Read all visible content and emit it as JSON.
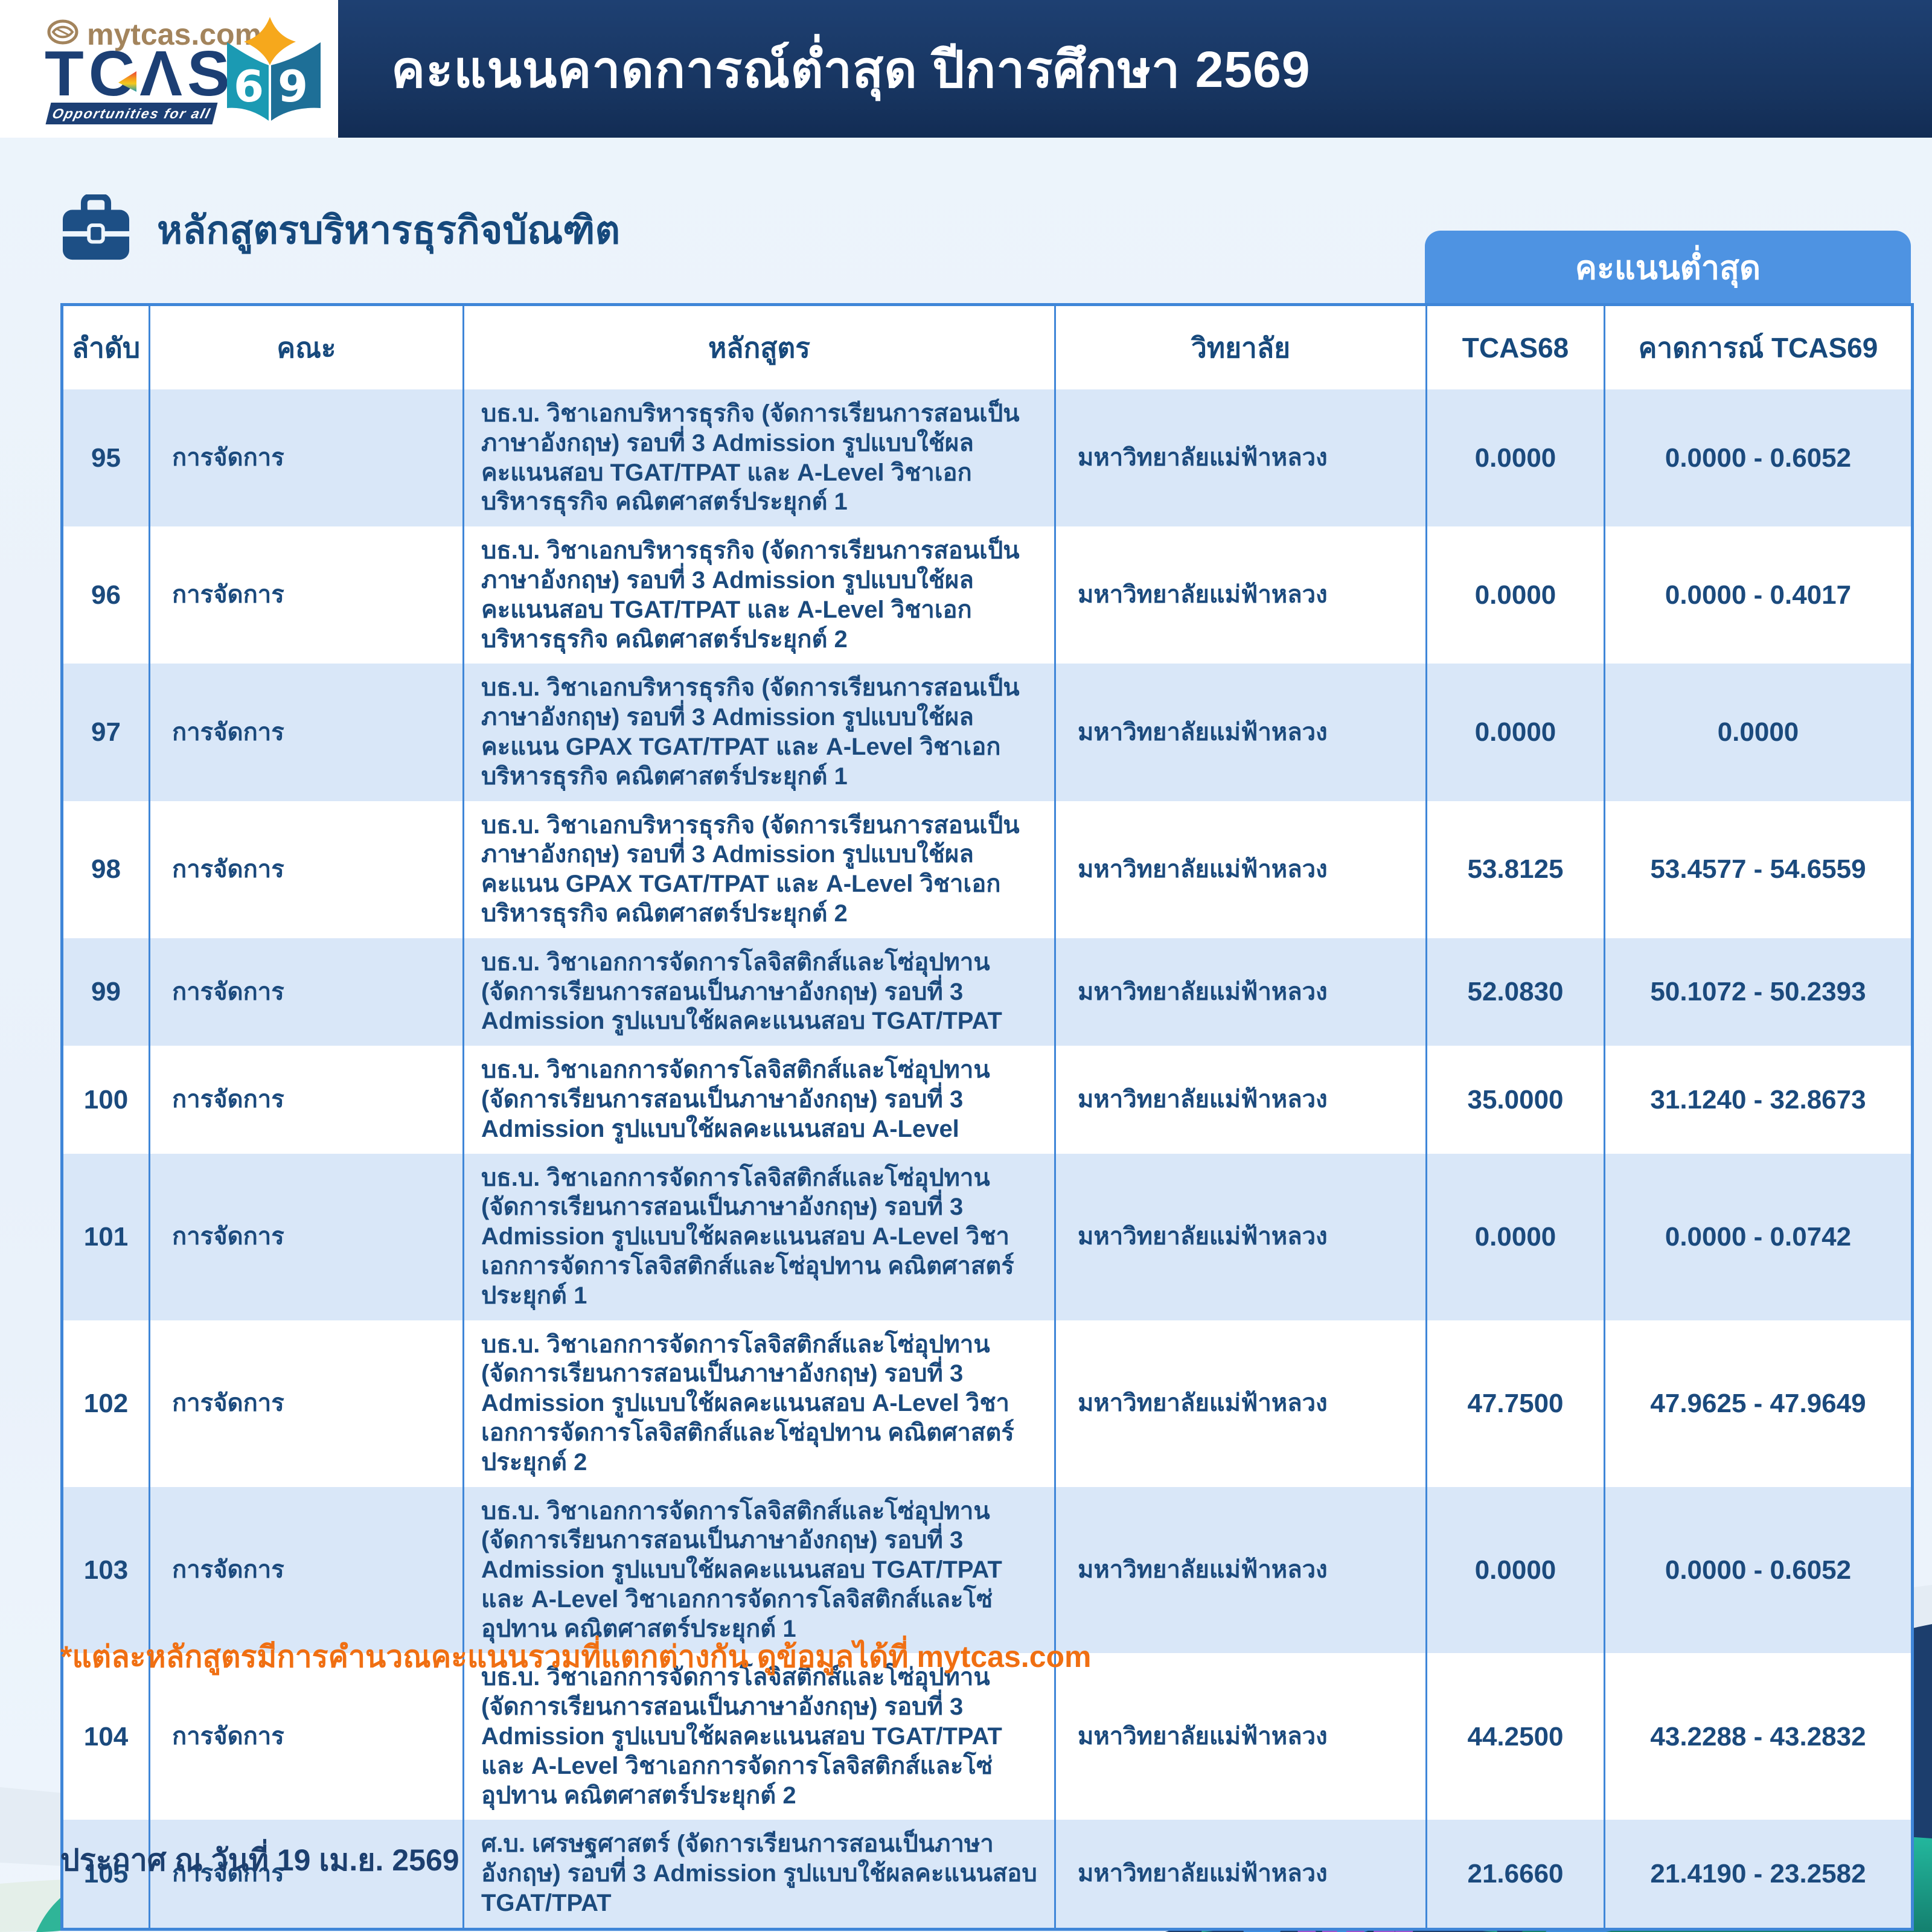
{
  "header": {
    "logo": {
      "site_text": "mytcas.com",
      "brand_text": "TCΛS",
      "tagline": "Opportunities for all",
      "book_left_number": "6",
      "book_right_number": "9"
    },
    "title": "คะแนนคาดการณ์ต่ำสุด ปีการศึกษา 2569"
  },
  "section": {
    "title": "หลักสูตรบริหารธุรกิจบัณฑิต",
    "badge_label": "คะแนนต่ำสุด"
  },
  "table": {
    "headers": [
      "ลำดับ",
      "คณะ",
      "หลักสูตร",
      "วิทยาลัย",
      "TCAS68",
      "คาดการณ์ TCAS69"
    ],
    "rows": [
      {
        "no": "95",
        "faculty": "การจัดการ",
        "program": "บธ.บ. วิชาเอกบริหารธุรกิจ (จัดการเรียนการสอนเป็นภาษาอังกฤษ) รอบที่ 3 Admission รูปแบบใช้ผลคะแนนสอบ TGAT/TPAT และ A-Level วิชาเอกบริหารธุรกิจ คณิตศาสตร์ประยุกต์ 1",
        "college": "มหาวิทยาลัยแม่ฟ้าหลวง",
        "tcas68": "0.0000",
        "tcas69": "0.0000 - 0.6052"
      },
      {
        "no": "96",
        "faculty": "การจัดการ",
        "program": "บธ.บ. วิชาเอกบริหารธุรกิจ (จัดการเรียนการสอนเป็นภาษาอังกฤษ) รอบที่ 3 Admission รูปแบบใช้ผลคะแนนสอบ TGAT/TPAT และ A-Level วิชาเอกบริหารธุรกิจ คณิตศาสตร์ประยุกต์ 2",
        "college": "มหาวิทยาลัยแม่ฟ้าหลวง",
        "tcas68": "0.0000",
        "tcas69": "0.0000 - 0.4017"
      },
      {
        "no": "97",
        "faculty": "การจัดการ",
        "program": "บธ.บ. วิชาเอกบริหารธุรกิจ (จัดการเรียนการสอนเป็นภาษาอังกฤษ) รอบที่ 3 Admission รูปแบบใช้ผลคะแนน GPAX TGAT/TPAT และ A-Level วิชาเอกบริหารธุรกิจ คณิตศาสตร์ประยุกต์ 1",
        "college": "มหาวิทยาลัยแม่ฟ้าหลวง",
        "tcas68": "0.0000",
        "tcas69": "0.0000"
      },
      {
        "no": "98",
        "faculty": "การจัดการ",
        "program": "บธ.บ. วิชาเอกบริหารธุรกิจ (จัดการเรียนการสอนเป็นภาษาอังกฤษ) รอบที่ 3 Admission รูปแบบใช้ผลคะแนน GPAX TGAT/TPAT และ A-Level วิชาเอกบริหารธุรกิจ คณิตศาสตร์ประยุกต์ 2",
        "college": "มหาวิทยาลัยแม่ฟ้าหลวง",
        "tcas68": "53.8125",
        "tcas69": "53.4577 - 54.6559"
      },
      {
        "no": "99",
        "faculty": "การจัดการ",
        "program": "บธ.บ. วิชาเอกการจัดการโลจิสติกส์และโซ่อุปทาน (จัดการเรียนการสอนเป็นภาษาอังกฤษ) รอบที่ 3 Admission รูปแบบใช้ผลคะแนนสอบ TGAT/TPAT",
        "college": "มหาวิทยาลัยแม่ฟ้าหลวง",
        "tcas68": "52.0830",
        "tcas69": "50.1072 - 50.2393"
      },
      {
        "no": "100",
        "faculty": "การจัดการ",
        "program": "บธ.บ. วิชาเอกการจัดการโลจิสติกส์และโซ่อุปทาน (จัดการเรียนการสอนเป็นภาษาอังกฤษ) รอบที่ 3 Admission รูปแบบใช้ผลคะแนนสอบ A-Level",
        "college": "มหาวิทยาลัยแม่ฟ้าหลวง",
        "tcas68": "35.0000",
        "tcas69": "31.1240 - 32.8673"
      },
      {
        "no": "101",
        "faculty": "การจัดการ",
        "program": "บธ.บ. วิชาเอกการจัดการโลจิสติกส์และโซ่อุปทาน (จัดการเรียนการสอนเป็นภาษาอังกฤษ) รอบที่ 3 Admission รูปแบบใช้ผลคะแนนสอบ A-Level วิชาเอกการจัดการโลจิสติกส์และโซ่อุปทาน คณิตศาสตร์ประยุกต์ 1",
        "college": "มหาวิทยาลัยแม่ฟ้าหลวง",
        "tcas68": "0.0000",
        "tcas69": "0.0000 - 0.0742"
      },
      {
        "no": "102",
        "faculty": "การจัดการ",
        "program": "บธ.บ. วิชาเอกการจัดการโลจิสติกส์และโซ่อุปทาน (จัดการเรียนการสอนเป็นภาษาอังกฤษ) รอบที่ 3 Admission รูปแบบใช้ผลคะแนนสอบ A-Level วิชาเอกการจัดการโลจิสติกส์และโซ่อุปทาน คณิตศาสตร์ประยุกต์ 2",
        "college": "มหาวิทยาลัยแม่ฟ้าหลวง",
        "tcas68": "47.7500",
        "tcas69": "47.9625 - 47.9649"
      },
      {
        "no": "103",
        "faculty": "การจัดการ",
        "program": "บธ.บ. วิชาเอกการจัดการโลจิสติกส์และโซ่อุปทาน (จัดการเรียนการสอนเป็นภาษาอังกฤษ) รอบที่ 3 Admission รูปแบบใช้ผลคะแนนสอบ TGAT/TPAT และ A-Level วิชาเอกการจัดการโลจิสติกส์และโซ่อุปทาน คณิตศาสตร์ประยุกต์ 1",
        "college": "มหาวิทยาลัยแม่ฟ้าหลวง",
        "tcas68": "0.0000",
        "tcas69": "0.0000 - 0.6052"
      },
      {
        "no": "104",
        "faculty": "การจัดการ",
        "program": "บธ.บ. วิชาเอกการจัดการโลจิสติกส์และโซ่อุปทาน (จัดการเรียนการสอนเป็นภาษาอังกฤษ) รอบที่ 3 Admission รูปแบบใช้ผลคะแนนสอบ TGAT/TPAT และ A-Level วิชาเอกการจัดการโลจิสติกส์และโซ่อุปทาน คณิตศาสตร์ประยุกต์ 2",
        "college": "มหาวิทยาลัยแม่ฟ้าหลวง",
        "tcas68": "44.2500",
        "tcas69": "43.2288 - 43.2832"
      },
      {
        "no": "105",
        "faculty": "การจัดการ",
        "program": "ศ.บ. เศรษฐศาสตร์ (จัดการเรียนการสอนเป็นภาษาอังกฤษ) รอบที่ 3 Admission รูปแบบใช้ผลคะแนนสอบ TGAT/TPAT",
        "college": "มหาวิทยาลัยแม่ฟ้าหลวง",
        "tcas68": "21.6660",
        "tcas69": "21.4190 - 23.2582"
      }
    ]
  },
  "footnote": "*แต่ละหลักสูตรมีการคำนวณคะแนนรวมที่แตกต่างกัน ดูข้อมูลได้ที่ mytcas.com",
  "footer": {
    "date_text": "ประกาศ ณ วันที่ 19 เม.ย. 2569"
  },
  "colors": {
    "banner_navy": "#1b3a69",
    "accent_blue": "#4e93e2",
    "table_border_blue": "#3f86d8",
    "row_alt_blue": "#d9e7f8",
    "text_navy": "#1b4a7d",
    "footnote_orange": "#f06f12",
    "logo_gold": "#a3845c",
    "book_teal": "#1b9ab3",
    "book_teal_dark": "#1e6f97",
    "star_yellow": "#f6a81c"
  }
}
